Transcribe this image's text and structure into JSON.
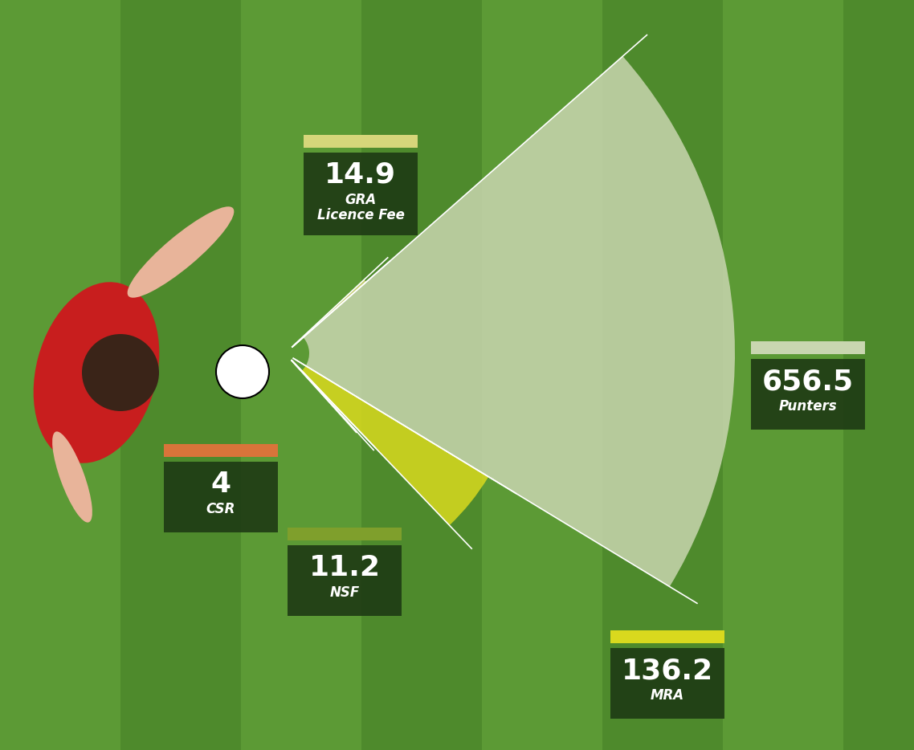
{
  "chart_data": {
    "type": "pie",
    "categories": [
      "GRA\nLicence Fee",
      "Punters",
      "MRA",
      "NSF",
      "CSR"
    ],
    "values": [
      14.9,
      656.5,
      136.2,
      11.2,
      4
    ],
    "colors": [
      "#d6d67a",
      "#c9d6b0",
      "#d9d91e",
      "#7f9f2c",
      "#d9743a"
    ],
    "data_labels": true
  }
}
